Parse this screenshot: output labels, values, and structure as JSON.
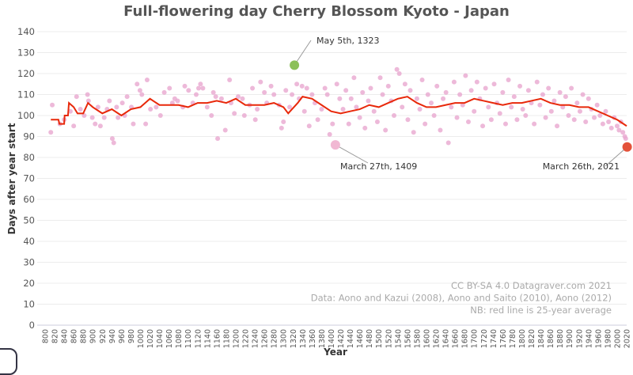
{
  "chart_data": {
    "type": "scatter",
    "title": "Full-flowering day Cherry Blossom Kyoto - Japan",
    "xlabel": "Year",
    "ylabel": "Days after year start",
    "xlim": [
      800,
      2020
    ],
    "ylim": [
      0,
      140
    ],
    "x_ticks": [
      800,
      820,
      840,
      860,
      880,
      900,
      920,
      940,
      960,
      980,
      1000,
      1020,
      1040,
      1060,
      1080,
      1100,
      1120,
      1140,
      1160,
      1180,
      1200,
      1220,
      1240,
      1260,
      1280,
      1300,
      1320,
      1340,
      1360,
      1380,
      1400,
      1420,
      1440,
      1460,
      1480,
      1500,
      1520,
      1540,
      1560,
      1580,
      1600,
      1620,
      1640,
      1660,
      1680,
      1700,
      1720,
      1740,
      1760,
      1780,
      1800,
      1820,
      1840,
      1860,
      1880,
      1900,
      1920,
      1940,
      1960,
      1980,
      2000,
      2020
    ],
    "y_ticks": [
      0,
      10,
      20,
      30,
      40,
      50,
      60,
      70,
      80,
      90,
      100,
      110,
      120,
      130,
      140
    ],
    "grid": "horizontal",
    "colors": {
      "points": "#e9a8d0",
      "average": "#e8280a",
      "highlight_max": "#8cc05a",
      "highlight_recent": "#e4523a",
      "highlight_min": "#f1b8d3"
    },
    "series": [
      {
        "kind": "scatter",
        "points": [
          [
            812,
            92
          ],
          [
            815,
            105
          ],
          [
            831,
            96
          ],
          [
            840,
            98
          ],
          [
            853,
            102
          ],
          [
            860,
            95
          ],
          [
            866,
            109
          ],
          [
            874,
            103
          ],
          [
            882,
            100
          ],
          [
            889,
            110
          ],
          [
            891,
            107
          ],
          [
            899,
            99
          ],
          [
            905,
            96
          ],
          [
            911,
            104
          ],
          [
            916,
            95
          ],
          [
            924,
            99
          ],
          [
            930,
            103
          ],
          [
            935,
            107
          ],
          [
            941,
            89
          ],
          [
            944,
            87
          ],
          [
            950,
            104
          ],
          [
            953,
            99
          ],
          [
            962,
            106
          ],
          [
            967,
            100
          ],
          [
            972,
            109
          ],
          [
            981,
            104
          ],
          [
            985,
            96
          ],
          [
            993,
            115
          ],
          [
            999,
            112
          ],
          [
            1003,
            110
          ],
          [
            1011,
            96
          ],
          [
            1014,
            117
          ],
          [
            1021,
            103
          ],
          [
            1033,
            104
          ],
          [
            1042,
            100
          ],
          [
            1050,
            111
          ],
          [
            1061,
            113
          ],
          [
            1067,
            106
          ],
          [
            1072,
            108
          ],
          [
            1078,
            107
          ],
          [
            1089,
            104
          ],
          [
            1093,
            114
          ],
          [
            1101,
            112
          ],
          [
            1110,
            106
          ],
          [
            1117,
            110
          ],
          [
            1122,
            113
          ],
          [
            1126,
            115
          ],
          [
            1131,
            113
          ],
          [
            1140,
            104
          ],
          [
            1149,
            100
          ],
          [
            1153,
            111
          ],
          [
            1158,
            109
          ],
          [
            1162,
            89
          ],
          [
            1170,
            108
          ],
          [
            1178,
            93
          ],
          [
            1187,
            117
          ],
          [
            1190,
            106
          ],
          [
            1197,
            101
          ],
          [
            1205,
            109
          ],
          [
            1214,
            108
          ],
          [
            1218,
            100
          ],
          [
            1229,
            105
          ],
          [
            1235,
            113
          ],
          [
            1241,
            98
          ],
          [
            1245,
            103
          ],
          [
            1252,
            116
          ],
          [
            1260,
            111
          ],
          [
            1265,
            106
          ],
          [
            1274,
            114
          ],
          [
            1280,
            110
          ],
          [
            1291,
            105
          ],
          [
            1296,
            94
          ],
          [
            1300,
            97
          ],
          [
            1305,
            112
          ],
          [
            1313,
            104
          ],
          [
            1318,
            110
          ],
          [
            1328,
            115
          ],
          [
            1333,
            108
          ],
          [
            1339,
            114
          ],
          [
            1344,
            102
          ],
          [
            1349,
            113
          ],
          [
            1354,
            95
          ],
          [
            1360,
            110
          ],
          [
            1366,
            106
          ],
          [
            1372,
            98
          ],
          [
            1380,
            103
          ],
          [
            1387,
            113
          ],
          [
            1392,
            110
          ],
          [
            1397,
            91
          ],
          [
            1403,
            96
          ],
          [
            1412,
            115
          ],
          [
            1418,
            108
          ],
          [
            1425,
            103
          ],
          [
            1431,
            112
          ],
          [
            1437,
            96
          ],
          [
            1442,
            108
          ],
          [
            1448,
            118
          ],
          [
            1453,
            104
          ],
          [
            1460,
            99
          ],
          [
            1466,
            111
          ],
          [
            1471,
            94
          ],
          [
            1478,
            107
          ],
          [
            1483,
            113
          ],
          [
            1490,
            102
          ],
          [
            1497,
            97
          ],
          [
            1503,
            118
          ],
          [
            1508,
            110
          ],
          [
            1514,
            93
          ],
          [
            1520,
            114
          ],
          [
            1526,
            107
          ],
          [
            1532,
            100
          ],
          [
            1538,
            122
          ],
          [
            1543,
            120
          ],
          [
            1549,
            104
          ],
          [
            1555,
            115
          ],
          [
            1561,
            98
          ],
          [
            1566,
            112
          ],
          [
            1573,
            92
          ],
          [
            1580,
            108
          ],
          [
            1586,
            103
          ],
          [
            1591,
            117
          ],
          [
            1597,
            96
          ],
          [
            1603,
            110
          ],
          [
            1610,
            106
          ],
          [
            1616,
            100
          ],
          [
            1622,
            114
          ],
          [
            1629,
            93
          ],
          [
            1635,
            108
          ],
          [
            1641,
            111
          ],
          [
            1646,
            87
          ],
          [
            1652,
            104
          ],
          [
            1658,
            116
          ],
          [
            1664,
            99
          ],
          [
            1670,
            110
          ],
          [
            1676,
            105
          ],
          [
            1682,
            119
          ],
          [
            1688,
            97
          ],
          [
            1694,
            112
          ],
          [
            1700,
            102
          ],
          [
            1706,
            116
          ],
          [
            1712,
            108
          ],
          [
            1718,
            95
          ],
          [
            1724,
            113
          ],
          [
            1730,
            104
          ],
          [
            1736,
            98
          ],
          [
            1742,
            115
          ],
          [
            1748,
            106
          ],
          [
            1754,
            101
          ],
          [
            1760,
            111
          ],
          [
            1766,
            96
          ],
          [
            1772,
            117
          ],
          [
            1778,
            104
          ],
          [
            1784,
            109
          ],
          [
            1790,
            98
          ],
          [
            1796,
            114
          ],
          [
            1802,
            103
          ],
          [
            1808,
            100
          ],
          [
            1814,
            112
          ],
          [
            1820,
            106
          ],
          [
            1826,
            96
          ],
          [
            1832,
            116
          ],
          [
            1838,
            105
          ],
          [
            1844,
            110
          ],
          [
            1850,
            99
          ],
          [
            1856,
            113
          ],
          [
            1862,
            102
          ],
          [
            1868,
            107
          ],
          [
            1874,
            95
          ],
          [
            1880,
            111
          ],
          [
            1886,
            104
          ],
          [
            1892,
            109
          ],
          [
            1898,
            100
          ],
          [
            1904,
            113
          ],
          [
            1910,
            98
          ],
          [
            1916,
            106
          ],
          [
            1922,
            102
          ],
          [
            1928,
            110
          ],
          [
            1934,
            97
          ],
          [
            1940,
            108
          ],
          [
            1946,
            103
          ],
          [
            1952,
            99
          ],
          [
            1958,
            105
          ],
          [
            1964,
            100
          ],
          [
            1970,
            96
          ],
          [
            1976,
            102
          ],
          [
            1982,
            97
          ],
          [
            1988,
            94
          ],
          [
            1994,
            99
          ],
          [
            2000,
            95
          ],
          [
            2004,
            93
          ],
          [
            2008,
            97
          ],
          [
            2012,
            92
          ],
          [
            2016,
            90
          ],
          [
            2018,
            89
          ]
        ]
      },
      {
        "kind": "line",
        "points": [
          [
            812,
            98
          ],
          [
            828,
            98
          ],
          [
            830,
            96
          ],
          [
            840,
            96
          ],
          [
            841,
            100
          ],
          [
            848,
            100
          ],
          [
            850,
            106
          ],
          [
            860,
            104
          ],
          [
            868,
            101
          ],
          [
            880,
            101
          ],
          [
            890,
            106
          ],
          [
            900,
            104
          ],
          [
            920,
            101
          ],
          [
            940,
            103
          ],
          [
            960,
            100
          ],
          [
            980,
            103
          ],
          [
            1000,
            104
          ],
          [
            1020,
            108
          ],
          [
            1040,
            105
          ],
          [
            1060,
            105
          ],
          [
            1080,
            105
          ],
          [
            1100,
            104
          ],
          [
            1120,
            106
          ],
          [
            1140,
            106
          ],
          [
            1160,
            107
          ],
          [
            1180,
            106
          ],
          [
            1200,
            108
          ],
          [
            1220,
            105
          ],
          [
            1240,
            105
          ],
          [
            1260,
            105
          ],
          [
            1280,
            106
          ],
          [
            1300,
            104
          ],
          [
            1310,
            101
          ],
          [
            1330,
            106
          ],
          [
            1340,
            109
          ],
          [
            1360,
            108
          ],
          [
            1380,
            105
          ],
          [
            1400,
            102
          ],
          [
            1420,
            101
          ],
          [
            1440,
            102
          ],
          [
            1460,
            103
          ],
          [
            1480,
            105
          ],
          [
            1500,
            104
          ],
          [
            1520,
            106
          ],
          [
            1540,
            108
          ],
          [
            1560,
            109
          ],
          [
            1580,
            106
          ],
          [
            1600,
            104
          ],
          [
            1620,
            104
          ],
          [
            1640,
            105
          ],
          [
            1660,
            106
          ],
          [
            1680,
            106
          ],
          [
            1700,
            108
          ],
          [
            1720,
            107
          ],
          [
            1740,
            106
          ],
          [
            1760,
            105
          ],
          [
            1780,
            106
          ],
          [
            1800,
            106
          ],
          [
            1820,
            107
          ],
          [
            1840,
            108
          ],
          [
            1860,
            106
          ],
          [
            1880,
            105
          ],
          [
            1900,
            105
          ],
          [
            1920,
            104
          ],
          [
            1940,
            104
          ],
          [
            1960,
            102
          ],
          [
            1980,
            100
          ],
          [
            2000,
            98
          ],
          [
            2020,
            95
          ]
        ]
      }
    ],
    "annotations": [
      {
        "label": "May 5th, 1323",
        "x": 1323,
        "y": 124
      },
      {
        "label": "March 27th, 1409",
        "x": 1409,
        "y": 86
      },
      {
        "label": "March 26th, 2021",
        "x": 2021,
        "y": 85
      }
    ],
    "credits": [
      "CC BY-SA 4.0  Datagraver.com 2021",
      "Data: Aono and Kazui (2008), Aono and Saito (2010), Aono (2012)",
      "NB: red line is 25-year average"
    ]
  }
}
